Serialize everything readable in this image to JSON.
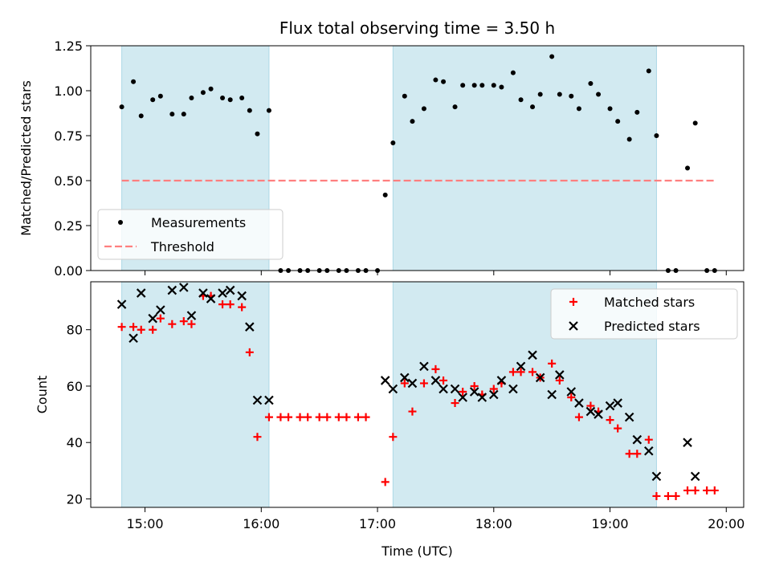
{
  "chart_data": {
    "title": "Flux total observing time = 3.50 h",
    "xlabel": "Time (UTC)",
    "x_unit": "hours UTC",
    "xlim": [
      "14:32",
      "20:09"
    ],
    "xticks": [
      {
        "value": "15:00",
        "label": "15:00"
      },
      {
        "value": "16:00",
        "label": "16:00"
      },
      {
        "value": "17:00",
        "label": "17:00"
      },
      {
        "value": "18:00",
        "label": "18:00"
      },
      {
        "value": "19:00",
        "label": "19:00"
      },
      {
        "value": "20:00",
        "label": "20:00"
      }
    ],
    "shaded_intervals": [
      {
        "start": "14:48",
        "end": "16:04",
        "color": "#add8e6"
      },
      {
        "start": "17:08",
        "end": "19:24",
        "color": "#add8e6"
      }
    ],
    "panels": [
      {
        "type": "scatter",
        "ylabel": "Matched/Predicted stars",
        "ylim": [
          0,
          1.25
        ],
        "yticks": [
          "0.00",
          "0.25",
          "0.50",
          "0.75",
          "1.00",
          "1.25"
        ],
        "legend_position": "lower-left",
        "series": [
          {
            "name": "Measurements",
            "marker": "dot",
            "color": "#000000",
            "points": [
              [
                "14:48",
                0.91
              ],
              [
                "14:54",
                1.05
              ],
              [
                "14:58",
                0.86
              ],
              [
                "15:04",
                0.95
              ],
              [
                "15:08",
                0.97
              ],
              [
                "15:14",
                0.87
              ],
              [
                "15:20",
                0.87
              ],
              [
                "15:24",
                0.96
              ],
              [
                "15:30",
                0.99
              ],
              [
                "15:34",
                1.01
              ],
              [
                "15:40",
                0.96
              ],
              [
                "15:44",
                0.95
              ],
              [
                "15:50",
                0.96
              ],
              [
                "15:54",
                0.89
              ],
              [
                "15:58",
                0.76
              ],
              [
                "16:04",
                0.89
              ],
              [
                "16:10",
                0.0
              ],
              [
                "16:14",
                0.0
              ],
              [
                "16:20",
                0.0
              ],
              [
                "16:24",
                0.0
              ],
              [
                "16:30",
                0.0
              ],
              [
                "16:34",
                0.0
              ],
              [
                "16:40",
                0.0
              ],
              [
                "16:44",
                0.0
              ],
              [
                "16:50",
                0.0
              ],
              [
                "16:54",
                0.0
              ],
              [
                "17:00",
                0.0
              ],
              [
                "17:04",
                0.42
              ],
              [
                "17:08",
                0.71
              ],
              [
                "17:14",
                0.97
              ],
              [
                "17:18",
                0.83
              ],
              [
                "17:24",
                0.9
              ],
              [
                "17:30",
                1.06
              ],
              [
                "17:34",
                1.05
              ],
              [
                "17:40",
                0.91
              ],
              [
                "17:44",
                1.03
              ],
              [
                "17:50",
                1.03
              ],
              [
                "17:54",
                1.03
              ],
              [
                "18:00",
                1.03
              ],
              [
                "18:04",
                1.02
              ],
              [
                "18:10",
                1.1
              ],
              [
                "18:14",
                0.95
              ],
              [
                "18:20",
                0.91
              ],
              [
                "18:24",
                0.98
              ],
              [
                "18:30",
                1.19
              ],
              [
                "18:34",
                0.98
              ],
              [
                "18:40",
                0.97
              ],
              [
                "18:44",
                0.9
              ],
              [
                "18:50",
                1.04
              ],
              [
                "18:54",
                0.98
              ],
              [
                "19:00",
                0.9
              ],
              [
                "19:04",
                0.83
              ],
              [
                "19:10",
                0.73
              ],
              [
                "19:14",
                0.88
              ],
              [
                "19:20",
                1.11
              ],
              [
                "19:24",
                0.75
              ],
              [
                "19:30",
                0.0
              ],
              [
                "19:34",
                0.0
              ],
              [
                "19:40",
                0.57
              ],
              [
                "19:44",
                0.82
              ],
              [
                "19:50",
                0.0
              ],
              [
                "19:54",
                0.0
              ]
            ]
          },
          {
            "name": "Threshold",
            "marker": "dashed-line",
            "color": "#ff7f7f",
            "points": [
              [
                "14:48",
                0.5
              ],
              [
                "19:54",
                0.5
              ]
            ]
          }
        ]
      },
      {
        "type": "scatter",
        "ylabel": "Count",
        "ylim": [
          17,
          97
        ],
        "yticks": [
          "20",
          "40",
          "60",
          "80"
        ],
        "legend_position": "top-right",
        "series": [
          {
            "name": "Matched stars",
            "marker": "plus",
            "color": "#ff0000",
            "points": [
              [
                "14:48",
                81
              ],
              [
                "14:54",
                81
              ],
              [
                "14:58",
                80
              ],
              [
                "15:04",
                80
              ],
              [
                "15:08",
                84
              ],
              [
                "15:14",
                82
              ],
              [
                "15:20",
                83
              ],
              [
                "15:24",
                82
              ],
              [
                "15:30",
                92
              ],
              [
                "15:34",
                92
              ],
              [
                "15:40",
                89
              ],
              [
                "15:44",
                89
              ],
              [
                "15:50",
                88
              ],
              [
                "15:54",
                72
              ],
              [
                "15:58",
                42
              ],
              [
                "16:04",
                49
              ],
              [
                "16:10",
                49
              ],
              [
                "16:14",
                49
              ],
              [
                "16:20",
                49
              ],
              [
                "16:24",
                49
              ],
              [
                "16:30",
                49
              ],
              [
                "16:34",
                49
              ],
              [
                "16:40",
                49
              ],
              [
                "16:44",
                49
              ],
              [
                "16:50",
                49
              ],
              [
                "16:54",
                49
              ],
              [
                "17:04",
                26
              ],
              [
                "17:08",
                42
              ],
              [
                "17:14",
                61
              ],
              [
                "17:18",
                51
              ],
              [
                "17:24",
                61
              ],
              [
                "17:30",
                66
              ],
              [
                "17:34",
                62
              ],
              [
                "17:40",
                54
              ],
              [
                "17:44",
                58
              ],
              [
                "17:50",
                60
              ],
              [
                "17:54",
                57
              ],
              [
                "18:00",
                59
              ],
              [
                "18:04",
                61
              ],
              [
                "18:10",
                65
              ],
              [
                "18:14",
                65
              ],
              [
                "18:20",
                65
              ],
              [
                "18:24",
                63
              ],
              [
                "18:30",
                68
              ],
              [
                "18:34",
                62
              ],
              [
                "18:40",
                56
              ],
              [
                "18:44",
                49
              ],
              [
                "18:50",
                53
              ],
              [
                "18:54",
                51
              ],
              [
                "19:00",
                48
              ],
              [
                "19:04",
                45
              ],
              [
                "19:10",
                36
              ],
              [
                "19:14",
                36
              ],
              [
                "19:20",
                41
              ],
              [
                "19:24",
                21
              ],
              [
                "19:30",
                21
              ],
              [
                "19:34",
                21
              ],
              [
                "19:40",
                23
              ],
              [
                "19:44",
                23
              ],
              [
                "19:50",
                23
              ],
              [
                "19:54",
                23
              ]
            ]
          },
          {
            "name": "Predicted stars",
            "marker": "x",
            "color": "#000000",
            "points": [
              [
                "14:48",
                89
              ],
              [
                "14:54",
                77
              ],
              [
                "14:58",
                93
              ],
              [
                "15:04",
                84
              ],
              [
                "15:08",
                87
              ],
              [
                "15:14",
                94
              ],
              [
                "15:20",
                95
              ],
              [
                "15:24",
                85
              ],
              [
                "15:30",
                93
              ],
              [
                "15:34",
                91
              ],
              [
                "15:40",
                93
              ],
              [
                "15:44",
                94
              ],
              [
                "15:50",
                92
              ],
              [
                "15:54",
                81
              ],
              [
                "15:58",
                55
              ],
              [
                "16:04",
                55
              ],
              [
                "17:04",
                62
              ],
              [
                "17:08",
                59
              ],
              [
                "17:14",
                63
              ],
              [
                "17:18",
                61
              ],
              [
                "17:24",
                67
              ],
              [
                "17:30",
                62
              ],
              [
                "17:34",
                59
              ],
              [
                "17:40",
                59
              ],
              [
                "17:44",
                56
              ],
              [
                "17:50",
                58
              ],
              [
                "17:54",
                56
              ],
              [
                "18:00",
                57
              ],
              [
                "18:04",
                62
              ],
              [
                "18:10",
                59
              ],
              [
                "18:14",
                67
              ],
              [
                "18:20",
                71
              ],
              [
                "18:24",
                63
              ],
              [
                "18:30",
                57
              ],
              [
                "18:34",
                64
              ],
              [
                "18:40",
                58
              ],
              [
                "18:44",
                54
              ],
              [
                "18:50",
                51
              ],
              [
                "18:54",
                50
              ],
              [
                "19:00",
                53
              ],
              [
                "19:04",
                54
              ],
              [
                "19:10",
                49
              ],
              [
                "19:14",
                41
              ],
              [
                "19:20",
                37
              ],
              [
                "19:24",
                28
              ],
              [
                "19:40",
                40
              ],
              [
                "19:44",
                28
              ]
            ]
          }
        ]
      }
    ]
  }
}
